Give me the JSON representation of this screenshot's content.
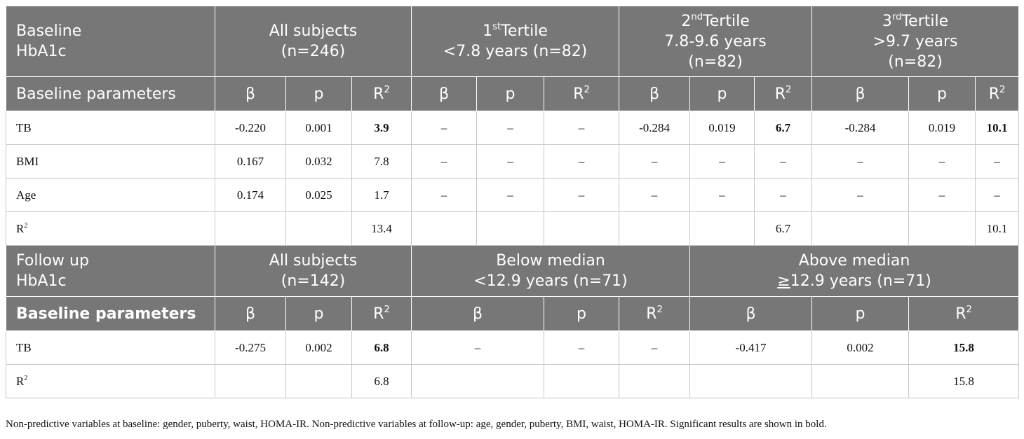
{
  "baseline": {
    "title_line1": "Baseline",
    "title_line2": "HbA1c",
    "groups": [
      {
        "label_line1": "All subjects",
        "label_line2": "(n=246)"
      },
      {
        "ordinal": "1",
        "ordinal_suffix": "st",
        "word": "Tertile",
        "label_line2": "<7.8 years (n=82)"
      },
      {
        "ordinal": "2",
        "ordinal_suffix": "nd",
        "word": "Tertile",
        "label_line2": "7.8-9.6 years",
        "label_line3": "(n=82)"
      },
      {
        "ordinal": "3",
        "ordinal_suffix": "rd",
        "word": "Tertile",
        "label_line2": ">9.7 years",
        "label_line3": "(n=82)"
      }
    ],
    "param_header": "Baseline parameters",
    "col_beta": "β",
    "col_p": "p",
    "col_r": "R",
    "col_r_sup": "2",
    "rows": [
      {
        "label": "TB",
        "label_sup": "",
        "cells": [
          "-0.220",
          "0.001",
          "3.9",
          "–",
          "–",
          "–",
          "-0.284",
          "0.019",
          "6.7",
          "-0.284",
          "0.019",
          "10.1"
        ]
      },
      {
        "label": "BMI",
        "label_sup": "",
        "cells": [
          "0.167",
          "0.032",
          "7.8",
          "–",
          "–",
          "–",
          "–",
          "–",
          "–",
          "–",
          "–",
          "–"
        ]
      },
      {
        "label": "Age",
        "label_sup": "",
        "cells": [
          "0.174",
          "0.025",
          "1.7",
          "–",
          "–",
          "–",
          "–",
          "–",
          "–",
          "–",
          "–",
          "–"
        ]
      },
      {
        "label": "R",
        "label_sup": "2",
        "cells": [
          "",
          "",
          "13.4",
          "",
          "",
          "",
          "",
          "",
          "6.7",
          "",
          "",
          "10.1"
        ]
      }
    ]
  },
  "followup": {
    "title_line1": "Follow up",
    "title_line2": "HbA1c",
    "groups": [
      {
        "label_line1": "All subjects",
        "label_line2": "(n=142)"
      },
      {
        "label_line1": "Below median",
        "label_line2": "<12.9 years (n=71)"
      },
      {
        "label_line1": "Above median",
        "label_ge": "≥",
        "label_line2_rest": "12.9 years (n=71)"
      }
    ],
    "param_header": "Baseline parameters",
    "col_beta": "β",
    "col_p": "p",
    "col_r": "R",
    "col_r_sup": "2",
    "rows": [
      {
        "label": "TB",
        "label_sup": "",
        "cells": [
          "-0.275",
          "0.002",
          "6.8",
          "–",
          "–",
          "–",
          "-0.417",
          "0.002",
          "15.8"
        ]
      },
      {
        "label": "R",
        "label_sup": "2",
        "cells": [
          "",
          "",
          "6.8",
          "",
          "",
          "",
          "",
          "",
          "15.8"
        ]
      }
    ]
  },
  "bold_values": [
    "3.9",
    "6.7",
    "10.1",
    "6.8",
    "15.8"
  ],
  "footnote": "Non-predictive variables at baseline: gender, puberty, waist, HOMA-IR. Non-predictive variables at follow-up: age, gender, puberty, BMI, waist, HOMA-IR. Significant results are shown in bold.",
  "colors": {
    "header_bg": "#777777",
    "header_text": "#ffffff",
    "grid": "#c8c8c8"
  }
}
